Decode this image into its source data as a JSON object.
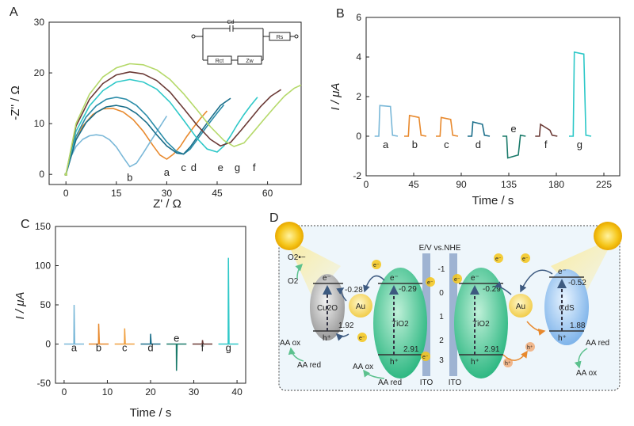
{
  "chart_data": [
    {
      "panel_label": "A",
      "type": "line",
      "xlabel": "Z' / Ω",
      "ylabel": "-Z'' / Ω",
      "xlim": [
        -5,
        70
      ],
      "ylim": [
        -2,
        30
      ],
      "xticks": [
        "0",
        "15",
        "30",
        "45",
        "60"
      ],
      "yticks": [
        "0",
        "10",
        "20",
        "30"
      ],
      "series": [
        {
          "name": "a",
          "color": "#e8892d",
          "x": [
            0,
            2,
            5,
            8,
            11,
            14,
            17,
            20,
            23,
            26,
            28,
            30,
            32,
            34,
            36,
            38,
            40,
            42
          ],
          "y": [
            0,
            5.5,
            9.5,
            11.8,
            12.9,
            13.0,
            12.3,
            10.8,
            8.5,
            5.6,
            3.8,
            3.0,
            4.0,
            5.5,
            7.5,
            9.3,
            11.0,
            12.5
          ]
        },
        {
          "name": "b",
          "color": "#7ab8d8",
          "x": [
            0,
            1.5,
            3,
            5,
            7,
            9,
            11,
            13,
            15,
            17,
            19,
            21,
            23,
            25,
            27,
            30
          ],
          "y": [
            0,
            3.5,
            5.5,
            6.9,
            7.6,
            7.8,
            7.6,
            6.8,
            5.4,
            3.4,
            1.5,
            2.2,
            4.2,
            6.3,
            8.4,
            11.5
          ]
        },
        {
          "name": "c",
          "color": "#2a8ca8",
          "x": [
            0,
            3,
            6,
            9,
            12,
            15,
            18,
            21,
            24,
            27,
            30,
            33,
            35,
            37,
            39,
            41,
            43,
            45,
            47
          ],
          "y": [
            0,
            7.5,
            11.3,
            13.5,
            14.8,
            15.2,
            14.8,
            13.6,
            11.6,
            9.0,
            6.4,
            4.5,
            4.0,
            5.0,
            6.8,
            8.6,
            10.4,
            12.1,
            13.7
          ]
        },
        {
          "name": "d",
          "color": "#1a6e8a",
          "x": [
            0,
            3,
            6,
            9,
            12,
            15,
            18,
            21,
            24,
            27,
            30,
            33,
            35,
            37,
            39,
            41,
            43,
            46,
            49
          ],
          "y": [
            0,
            6.8,
            10.2,
            12.2,
            13.3,
            13.6,
            13.2,
            12.0,
            10.2,
            7.8,
            5.6,
            4.2,
            4.0,
            5.4,
            7.3,
            9.2,
            11.0,
            13.6,
            15.0
          ]
        },
        {
          "name": "e",
          "color": "#2ec8c8",
          "x": [
            0,
            3,
            7,
            11,
            15,
            19,
            23,
            27,
            31,
            35,
            39,
            42,
            45,
            47,
            49,
            51,
            53,
            55,
            57
          ],
          "y": [
            0,
            8.5,
            13.5,
            16.5,
            18.2,
            18.7,
            18.2,
            16.8,
            14.2,
            10.7,
            7.1,
            5.0,
            4.4,
            5.6,
            7.6,
            9.8,
            11.8,
            13.6,
            15.2
          ]
        },
        {
          "name": "g",
          "color": "#6b3a36",
          "x": [
            0,
            3,
            7,
            11,
            15,
            19,
            23,
            27,
            31,
            35,
            39,
            43,
            46,
            49,
            52,
            55,
            58,
            61,
            64
          ],
          "y": [
            0,
            9.5,
            14.8,
            17.9,
            19.6,
            20.2,
            19.8,
            18.5,
            16.2,
            13.0,
            9.7,
            6.9,
            5.6,
            6.3,
            8.6,
            11.0,
            13.4,
            15.4,
            16.7
          ]
        },
        {
          "name": "f",
          "color": "#b5d96a",
          "x": [
            0,
            3,
            7,
            11,
            15,
            19,
            23,
            27,
            31,
            35,
            39,
            43,
            47,
            50,
            53,
            56,
            59,
            62,
            65,
            68,
            70
          ],
          "y": [
            0,
            10.0,
            15.8,
            19.2,
            21.0,
            21.8,
            21.6,
            20.6,
            18.7,
            15.9,
            12.7,
            9.4,
            6.7,
            5.5,
            6.2,
            8.5,
            10.9,
            13.2,
            15.4,
            17.0,
            17.6
          ]
        }
      ],
      "curve_labels": [
        "b",
        "a",
        "c",
        "d",
        "e",
        "g",
        "f"
      ],
      "inset_labels": [
        "Cd",
        "Rs",
        "Rct",
        "Zw"
      ]
    },
    {
      "panel_label": "B",
      "type": "line",
      "xlabel": "Time / s",
      "ylabel": "I / μA",
      "xlim": [
        0,
        240
      ],
      "ylim": [
        -2,
        6
      ],
      "xticks": [
        "0",
        "45",
        "90",
        "135",
        "180",
        "225"
      ],
      "yticks": [
        "-2",
        "0",
        "2",
        "4",
        "6"
      ],
      "series": [
        {
          "name": "a",
          "color": "#7ab8d8",
          "t0": 12,
          "w": 13,
          "peak": 1.55,
          "hold": 1.5
        },
        {
          "name": "b",
          "color": "#e8892d",
          "t0": 40,
          "w": 12,
          "peak": 1.05,
          "hold": 0.95
        },
        {
          "name": "c",
          "color": "#e8892d",
          "t0": 70,
          "w": 12,
          "peak": 0.95,
          "hold": 0.85
        },
        {
          "name": "d",
          "color": "#1a6e8a",
          "t0": 100,
          "w": 12,
          "peak": 0.72,
          "hold": 0.6
        },
        {
          "name": "e",
          "color": "#1a7a6a",
          "t0": 133,
          "w": 13,
          "peak": -1.1,
          "hold": -0.95
        },
        {
          "name": "f",
          "color": "#6b3a36",
          "t0": 164,
          "w": 12,
          "peak": 0.6,
          "hold": 0.3
        },
        {
          "name": "g",
          "color": "#2ec8c8",
          "t0": 196,
          "w": 12,
          "peak": 4.25,
          "hold": 4.15
        }
      ],
      "curve_labels": [
        "a",
        "b",
        "c",
        "d",
        "e",
        "f",
        "g"
      ]
    },
    {
      "panel_label": "C",
      "type": "line",
      "xlabel": "Time / s",
      "ylabel": "I / μA",
      "xlim": [
        -2,
        42
      ],
      "ylim": [
        -50,
        150
      ],
      "xticks": [
        "0",
        "10",
        "20",
        "30",
        "40"
      ],
      "yticks": [
        "-50",
        "0",
        "50",
        "100",
        "150"
      ],
      "series": [
        {
          "name": "a",
          "color": "#7ab8d8",
          "t": 2.3,
          "peak": 50
        },
        {
          "name": "b",
          "color": "#e8892d",
          "t": 8.0,
          "peak": 26
        },
        {
          "name": "c",
          "color": "#f0a040",
          "t": 14.0,
          "peak": 20
        },
        {
          "name": "d",
          "color": "#1a6e8a",
          "t": 20.0,
          "peak": 13
        },
        {
          "name": "e",
          "color": "#1a7a6a",
          "t": 26.0,
          "peak": -34
        },
        {
          "name": "f",
          "color": "#6b3a36",
          "t": 32.0,
          "peak": 5
        },
        {
          "name": "g",
          "color": "#2ec8c8",
          "t": 38.0,
          "peak": 110
        }
      ],
      "curve_labels": [
        "a",
        "b",
        "c",
        "d",
        "e",
        "f",
        "g"
      ]
    }
  ],
  "diagram": {
    "panel_label": "D",
    "scale_title": "E/V vs.NHE",
    "scale_ticks": [
      "-1",
      "0",
      "1",
      "2",
      "3"
    ],
    "left": {
      "cu2o": "Cu2O",
      "cu2o_cb": "-0.28",
      "cu2o_vb": "1.92",
      "au": "Au",
      "tio2": "TiO2",
      "tio2_cb": "-0.29",
      "tio2_vb": "2.91",
      "o2": "O2",
      "o2_radical": "O2•−",
      "aa_ox": "AA ox",
      "aa_red": "AA red",
      "ito": "ITO"
    },
    "right": {
      "tio2": "TiO2",
      "tio2_cb": "-0.29",
      "tio2_vb": "2.91",
      "au": "Au",
      "cds": "CdS",
      "cds_cb": "-0.52",
      "cds_vb": "1.88",
      "aa_red": "AA red",
      "aa_ox": "AA ox",
      "ito": "ITO"
    },
    "carriers": {
      "electron": "e⁻",
      "hole": "h⁺"
    }
  },
  "colors": {
    "teal": "#2ec8c8",
    "orange": "#e8892d",
    "green_tio2": "#3ec79a",
    "sun": "#f5c518"
  }
}
